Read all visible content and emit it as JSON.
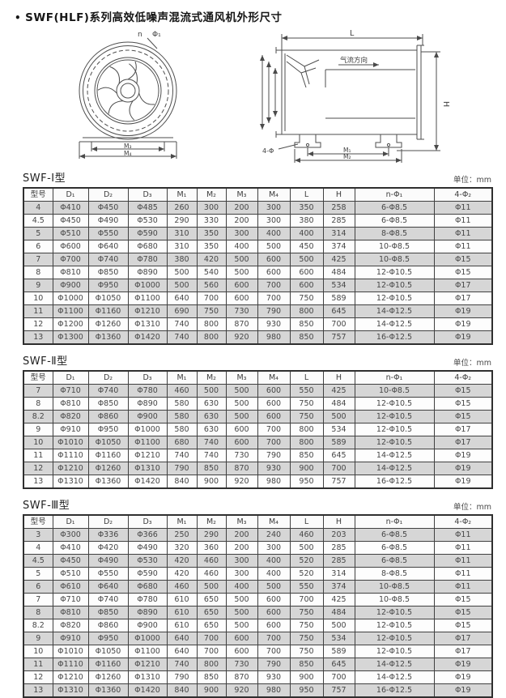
{
  "page": {
    "bullet": "•",
    "title": "SWF(HLF)系列高效低噪声混流式通风机外形尺寸",
    "unit_label": "单位：mm",
    "accent_colors": {
      "stripe_gray": "#d6d6d6",
      "line_dark": "#2f2f2f",
      "text": "#474747"
    }
  },
  "diagram": {
    "front_view": {
      "bolt_count_label": "n",
      "bolt_dia_label": "Φ₁",
      "dim_inner": "M₃",
      "dim_outer": "M₄"
    },
    "side_view": {
      "length_label": "L",
      "airflow_label": "气流方向",
      "height_label": "H",
      "foot_holes_label": "4-Φ",
      "dim_inner": "M₁",
      "dim_outer": "M₂"
    }
  },
  "columns": [
    "型号",
    "D₁",
    "D₂",
    "D₃",
    "M₁",
    "M₂",
    "M₃",
    "M₄",
    "L",
    "H",
    "n-Φ₁",
    "4-Φ₂"
  ],
  "tables": [
    {
      "name": "SWF-Ⅰ型",
      "rows": [
        [
          "4",
          "Φ410",
          "Φ450",
          "Φ485",
          "260",
          "300",
          "200",
          "300",
          "350",
          "258",
          "6-Φ8.5",
          "Φ11"
        ],
        [
          "4.5",
          "Φ450",
          "Φ490",
          "Φ530",
          "290",
          "330",
          "200",
          "300",
          "380",
          "285",
          "6-Φ8.5",
          "Φ11"
        ],
        [
          "5",
          "Φ510",
          "Φ550",
          "Φ590",
          "310",
          "350",
          "300",
          "400",
          "400",
          "314",
          "8-Φ8.5",
          "Φ11"
        ],
        [
          "6",
          "Φ600",
          "Φ640",
          "Φ680",
          "310",
          "350",
          "400",
          "500",
          "450",
          "374",
          "10-Φ8.5",
          "Φ11"
        ],
        [
          "7",
          "Φ700",
          "Φ740",
          "Φ780",
          "380",
          "420",
          "500",
          "600",
          "500",
          "425",
          "10-Φ8.5",
          "Φ15"
        ],
        [
          "8",
          "Φ810",
          "Φ850",
          "Φ890",
          "500",
          "540",
          "500",
          "600",
          "600",
          "484",
          "12-Φ10.5",
          "Φ15"
        ],
        [
          "9",
          "Φ900",
          "Φ950",
          "Φ1000",
          "500",
          "560",
          "600",
          "700",
          "600",
          "534",
          "12-Φ10.5",
          "Φ17"
        ],
        [
          "10",
          "Φ1000",
          "Φ1050",
          "Φ1100",
          "640",
          "700",
          "600",
          "700",
          "750",
          "589",
          "12-Φ10.5",
          "Φ17"
        ],
        [
          "11",
          "Φ1100",
          "Φ1160",
          "Φ1210",
          "690",
          "750",
          "730",
          "790",
          "800",
          "645",
          "14-Φ12.5",
          "Φ19"
        ],
        [
          "12",
          "Φ1200",
          "Φ1260",
          "Φ1310",
          "740",
          "800",
          "870",
          "930",
          "850",
          "700",
          "14-Φ12.5",
          "Φ19"
        ],
        [
          "13",
          "Φ1300",
          "Φ1360",
          "Φ1420",
          "740",
          "800",
          "920",
          "980",
          "850",
          "757",
          "16-Φ12.5",
          "Φ19"
        ]
      ]
    },
    {
      "name": "SWF-Ⅱ型",
      "rows": [
        [
          "7",
          "Φ710",
          "Φ740",
          "Φ780",
          "460",
          "500",
          "500",
          "600",
          "550",
          "425",
          "10-Φ8.5",
          "Φ15"
        ],
        [
          "8",
          "Φ810",
          "Φ850",
          "Φ890",
          "580",
          "630",
          "500",
          "600",
          "750",
          "484",
          "12-Φ10.5",
          "Φ15"
        ],
        [
          "8.2",
          "Φ820",
          "Φ860",
          "Φ900",
          "580",
          "630",
          "500",
          "600",
          "750",
          "500",
          "12-Φ10.5",
          "Φ15"
        ],
        [
          "9",
          "Φ910",
          "Φ950",
          "Φ1000",
          "580",
          "630",
          "600",
          "700",
          "800",
          "534",
          "12-Φ10.5",
          "Φ17"
        ],
        [
          "10",
          "Φ1010",
          "Φ1050",
          "Φ1100",
          "680",
          "740",
          "600",
          "700",
          "800",
          "589",
          "12-Φ10.5",
          "Φ17"
        ],
        [
          "11",
          "Φ1110",
          "Φ1160",
          "Φ1210",
          "740",
          "740",
          "730",
          "790",
          "850",
          "645",
          "14-Φ12.5",
          "Φ19"
        ],
        [
          "12",
          "Φ1210",
          "Φ1260",
          "Φ1310",
          "790",
          "850",
          "870",
          "930",
          "900",
          "700",
          "14-Φ12.5",
          "Φ19"
        ],
        [
          "13",
          "Φ1310",
          "Φ1360",
          "Φ1420",
          "840",
          "900",
          "920",
          "980",
          "950",
          "757",
          "16-Φ12.5",
          "Φ19"
        ]
      ]
    },
    {
      "name": "SWF-Ⅲ型",
      "rows": [
        [
          "3",
          "Φ300",
          "Φ336",
          "Φ366",
          "250",
          "290",
          "200",
          "240",
          "460",
          "203",
          "6-Φ8.5",
          "Φ11"
        ],
        [
          "4",
          "Φ410",
          "Φ420",
          "Φ490",
          "320",
          "360",
          "200",
          "300",
          "500",
          "285",
          "6-Φ8.5",
          "Φ11"
        ],
        [
          "4.5",
          "Φ450",
          "Φ490",
          "Φ530",
          "420",
          "460",
          "300",
          "400",
          "520",
          "285",
          "6-Φ8.5",
          "Φ11"
        ],
        [
          "5",
          "Φ510",
          "Φ550",
          "Φ590",
          "420",
          "460",
          "300",
          "400",
          "520",
          "314",
          "8-Φ8.5",
          "Φ11"
        ],
        [
          "6",
          "Φ610",
          "Φ640",
          "Φ680",
          "460",
          "500",
          "400",
          "500",
          "550",
          "374",
          "10-Φ8.5",
          "Φ11"
        ],
        [
          "7",
          "Φ710",
          "Φ740",
          "Φ780",
          "610",
          "650",
          "500",
          "600",
          "700",
          "425",
          "10-Φ8.5",
          "Φ15"
        ],
        [
          "8",
          "Φ810",
          "Φ850",
          "Φ890",
          "610",
          "650",
          "500",
          "600",
          "750",
          "484",
          "12-Φ10.5",
          "Φ15"
        ],
        [
          "8.2",
          "Φ820",
          "Φ860",
          "Φ900",
          "610",
          "650",
          "500",
          "600",
          "750",
          "500",
          "12-Φ10.5",
          "Φ15"
        ],
        [
          "9",
          "Φ910",
          "Φ950",
          "Φ1000",
          "640",
          "700",
          "600",
          "700",
          "750",
          "534",
          "12-Φ10.5",
          "Φ17"
        ],
        [
          "10",
          "Φ1010",
          "Φ1050",
          "Φ1100",
          "640",
          "700",
          "600",
          "700",
          "750",
          "589",
          "12-Φ10.5",
          "Φ17"
        ],
        [
          "11",
          "Φ1110",
          "Φ1160",
          "Φ1210",
          "740",
          "800",
          "730",
          "790",
          "850",
          "645",
          "14-Φ12.5",
          "Φ19"
        ],
        [
          "12",
          "Φ1210",
          "Φ1260",
          "Φ1310",
          "790",
          "850",
          "870",
          "930",
          "900",
          "700",
          "14-Φ12.5",
          "Φ19"
        ],
        [
          "13",
          "Φ1310",
          "Φ1360",
          "Φ1420",
          "840",
          "900",
          "920",
          "980",
          "950",
          "757",
          "16-Φ12.5",
          "Φ19"
        ]
      ]
    }
  ]
}
